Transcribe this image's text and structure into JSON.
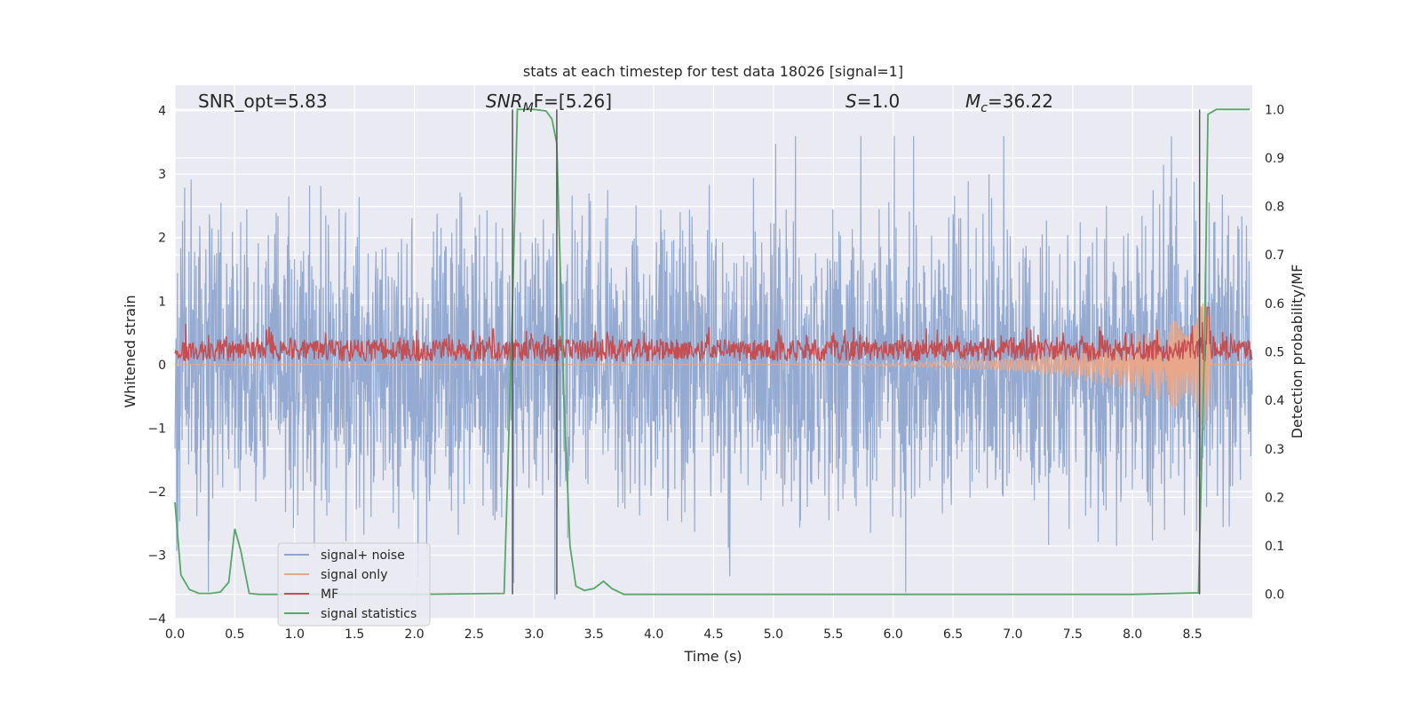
{
  "chart_data": {
    "type": "line",
    "title": "stats at each timestep for test data 18026 [signal=1]",
    "xlabel": "Time (s)",
    "ylabel": "Whitened strain",
    "ylabel_right": "Detection probability/MF",
    "xlim": [
      0.0,
      9.0
    ],
    "ylim": [
      -4.0,
      4.4
    ],
    "ylim_right": [
      -0.05,
      1.05
    ],
    "x_ticks": [
      "0.0",
      "0.5",
      "1.0",
      "1.5",
      "2.0",
      "2.5",
      "3.0",
      "3.5",
      "4.0",
      "4.5",
      "5.0",
      "5.5",
      "6.0",
      "6.5",
      "7.0",
      "7.5",
      "8.0",
      "8.5"
    ],
    "y_ticks": [
      "−4",
      "−3",
      "−2",
      "−1",
      "0",
      "1",
      "2",
      "3",
      "4"
    ],
    "y_ticks_right": [
      "0.0",
      "0.1",
      "0.2",
      "0.3",
      "0.4",
      "0.5",
      "0.6",
      "0.7",
      "0.8",
      "0.9",
      "1.0"
    ],
    "grid": true,
    "legend_position": "lower-left",
    "annotations": {
      "snr_opt": "SNR_opt=5.83",
      "snr_mf_name": "SNR",
      "snr_mf_sub": "M",
      "snr_mf_rest": "F=[5.26]",
      "s_name": "S",
      "s_rest": "=1.0",
      "mc_name": "M",
      "mc_sub": "c",
      "mc_rest": "=36.22"
    },
    "vertical_markers": [
      2.82,
      3.19,
      8.56
    ],
    "series": [
      {
        "name": "signal+ noise",
        "color": "#8fa6cf",
        "axis": "left",
        "description": "whitened noisy strain, roughly symmetric about 0 with amplitude about ±3.5",
        "envelope": {
          "min": -3.7,
          "max": 3.6
        }
      },
      {
        "name": "signal only",
        "color": "#e8a78a",
        "axis": "left",
        "description": "chirp, near 0 until ~7.5 s, growing to about ±1.4 around 8.6 s",
        "points": [
          [
            0.0,
            0.0
          ],
          [
            7.5,
            0.0
          ],
          [
            8.0,
            0.15
          ],
          [
            8.3,
            0.3
          ],
          [
            8.5,
            0.6
          ],
          [
            8.6,
            1.4
          ],
          [
            8.63,
            -1.4
          ],
          [
            8.65,
            0.0
          ],
          [
            9.0,
            0.0
          ]
        ]
      },
      {
        "name": "MF",
        "color": "#c44e52",
        "axis": "left",
        "description": "matched-filter output, fluctuating between about 0.0 and 0.7, peak about 0.9 near 8.6 s",
        "envelope": {
          "min": 0.0,
          "max": 0.7
        },
        "peak": [
          8.63,
          0.9
        ]
      },
      {
        "name": "signal statistics",
        "color": "#55a868",
        "axis": "right",
        "points": [
          [
            0.0,
            0.19
          ],
          [
            0.05,
            0.04
          ],
          [
            0.12,
            0.01
          ],
          [
            0.2,
            0.002
          ],
          [
            0.3,
            0.002
          ],
          [
            0.38,
            0.005
          ],
          [
            0.45,
            0.025
          ],
          [
            0.5,
            0.135
          ],
          [
            0.55,
            0.09
          ],
          [
            0.62,
            0.002
          ],
          [
            0.7,
            0.0
          ],
          [
            1.0,
            0.0
          ],
          [
            2.0,
            0.0
          ],
          [
            2.75,
            0.002
          ],
          [
            2.78,
            0.25
          ],
          [
            2.82,
            0.6
          ],
          [
            2.86,
            1.0
          ],
          [
            3.0,
            1.0
          ],
          [
            3.1,
            0.997
          ],
          [
            3.15,
            0.98
          ],
          [
            3.19,
            0.93
          ],
          [
            3.25,
            0.4
          ],
          [
            3.3,
            0.1
          ],
          [
            3.35,
            0.017
          ],
          [
            3.42,
            0.008
          ],
          [
            3.5,
            0.012
          ],
          [
            3.58,
            0.027
          ],
          [
            3.65,
            0.012
          ],
          [
            3.75,
            0.0
          ],
          [
            4.0,
            0.0
          ],
          [
            5.0,
            0.0
          ],
          [
            6.0,
            0.0
          ],
          [
            7.0,
            0.0
          ],
          [
            8.0,
            0.0
          ],
          [
            8.55,
            0.003
          ],
          [
            8.6,
            0.5
          ],
          [
            8.63,
            0.99
          ],
          [
            8.7,
            1.0
          ],
          [
            8.98,
            1.0
          ]
        ]
      }
    ]
  }
}
